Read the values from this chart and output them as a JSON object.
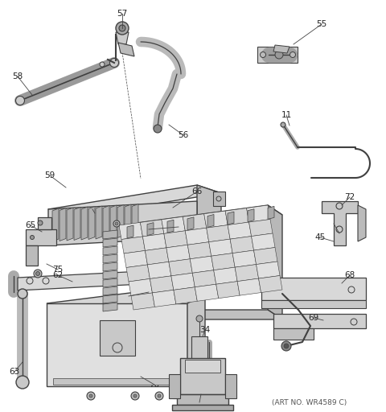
{
  "art_no_text": "(ART NO. WR4589 C)",
  "background_color": "#ffffff",
  "line_color": "#404040",
  "text_color": "#222222",
  "fig_width": 4.8,
  "fig_height": 5.12,
  "dpi": 100
}
